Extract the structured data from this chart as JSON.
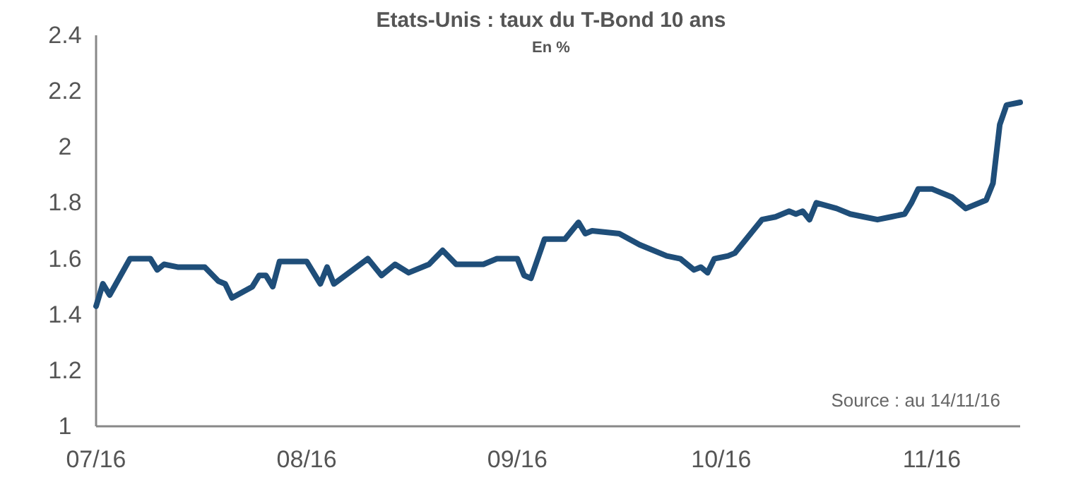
{
  "chart_data": {
    "type": "line",
    "title": "Etats-Unis : taux du T-Bond 10 ans",
    "subtitle": "En %",
    "annotations": [
      "Source : au 14/11/16"
    ],
    "x": [
      "2016-07-01",
      "2016-07-02",
      "2016-07-03",
      "2016-07-06",
      "2016-07-09",
      "2016-07-10",
      "2016-07-11",
      "2016-07-13",
      "2016-07-17",
      "2016-07-19",
      "2016-07-20",
      "2016-07-21",
      "2016-07-24",
      "2016-07-25",
      "2016-07-26",
      "2016-07-27",
      "2016-07-28",
      "2016-08-01",
      "2016-08-03",
      "2016-08-04",
      "2016-08-05",
      "2016-08-10",
      "2016-08-12",
      "2016-08-14",
      "2016-08-16",
      "2016-08-19",
      "2016-08-21",
      "2016-08-23",
      "2016-08-27",
      "2016-08-29",
      "2016-09-01",
      "2016-09-02",
      "2016-09-03",
      "2016-09-05",
      "2016-09-08",
      "2016-09-10",
      "2016-09-11",
      "2016-09-12",
      "2016-09-16",
      "2016-09-19",
      "2016-09-23",
      "2016-09-25",
      "2016-09-27",
      "2016-09-28",
      "2016-09-29",
      "2016-09-30",
      "2016-10-02",
      "2016-10-03",
      "2016-10-05",
      "2016-10-07",
      "2016-10-09",
      "2016-10-10",
      "2016-10-11",
      "2016-10-12",
      "2016-10-13",
      "2016-10-14",
      "2016-10-15",
      "2016-10-18",
      "2016-10-20",
      "2016-10-22",
      "2016-10-24",
      "2016-10-26",
      "2016-10-28",
      "2016-10-29",
      "2016-10-30",
      "2016-11-01",
      "2016-11-03",
      "2016-11-04",
      "2016-11-05",
      "2016-11-06",
      "2016-11-09",
      "2016-11-10",
      "2016-11-11",
      "2016-11-12",
      "2016-11-14"
    ],
    "series": [
      {
        "color": "#1f4e79",
        "values": [
          1.43,
          1.51,
          1.47,
          1.6,
          1.6,
          1.56,
          1.58,
          1.57,
          1.57,
          1.52,
          1.51,
          1.46,
          1.5,
          1.54,
          1.54,
          1.5,
          1.59,
          1.59,
          1.51,
          1.57,
          1.51,
          1.6,
          1.54,
          1.58,
          1.55,
          1.58,
          1.63,
          1.58,
          1.58,
          1.6,
          1.6,
          1.54,
          1.53,
          1.67,
          1.67,
          1.73,
          1.69,
          1.7,
          1.69,
          1.65,
          1.61,
          1.6,
          1.56,
          1.57,
          1.55,
          1.6,
          1.61,
          1.62,
          1.68,
          1.74,
          1.75,
          1.76,
          1.77,
          1.76,
          1.77,
          1.74,
          1.8,
          1.78,
          1.76,
          1.75,
          1.74,
          1.75,
          1.76,
          1.8,
          1.85,
          1.85,
          1.83,
          1.82,
          1.8,
          1.78,
          1.81,
          1.87,
          2.08,
          2.15,
          2.16
        ]
      }
    ],
    "xlim": [
      "2016-07-01",
      "2016-11-14"
    ],
    "xticks": [
      {
        "value": "2016-07-01",
        "label": "07/16"
      },
      {
        "value": "2016-08-01",
        "label": "08/16"
      },
      {
        "value": "2016-09-01",
        "label": "09/16"
      },
      {
        "value": "2016-10-01",
        "label": "10/16"
      },
      {
        "value": "2016-11-01",
        "label": "11/16"
      }
    ],
    "ylim": [
      1,
      2.4
    ],
    "yticks": [
      1,
      1.2,
      1.4,
      1.6,
      1.8,
      2,
      2.2,
      2.4
    ],
    "grid": false,
    "line_style": "solid",
    "marker": "none"
  }
}
